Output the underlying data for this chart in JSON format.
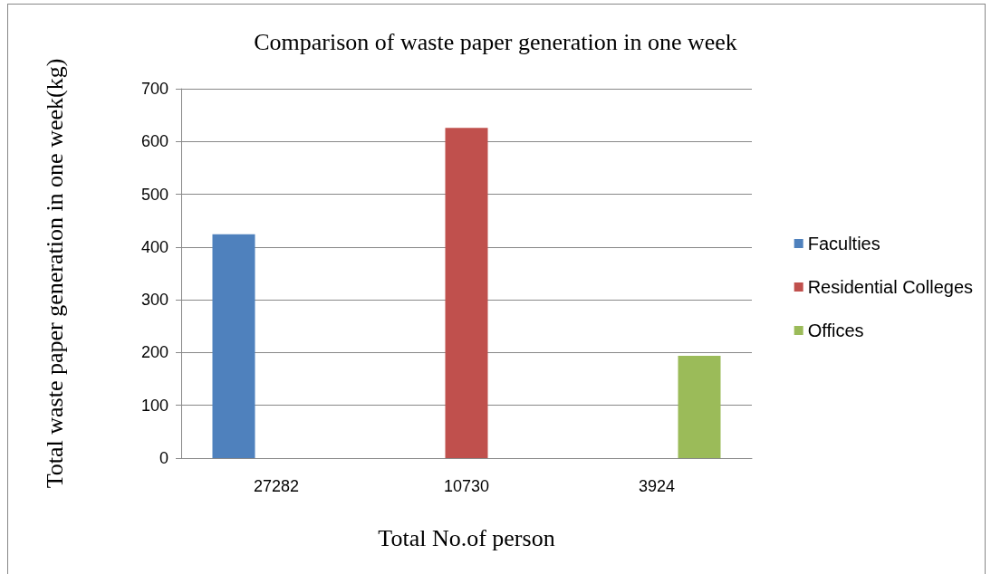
{
  "chart_data": {
    "type": "bar",
    "title": "Comparison of waste paper generation in one week",
    "xlabel": "Total No.of person",
    "ylabel": "Total waste paper generation in one week(kg)",
    "categories": [
      "27282",
      "10730",
      "3924"
    ],
    "series": [
      {
        "name": "Faculties",
        "color": "#4f81bd",
        "values": [
          424,
          null,
          null
        ]
      },
      {
        "name": "Residential Colleges",
        "color": "#c0504d",
        "values": [
          null,
          626,
          null
        ]
      },
      {
        "name": "Offices",
        "color": "#9bbb59",
        "values": [
          null,
          null,
          194
        ]
      }
    ],
    "ylim": [
      0,
      700
    ],
    "yticks": [
      0,
      100,
      200,
      300,
      400,
      500,
      600,
      700
    ],
    "grid": "y",
    "legend": "right"
  }
}
